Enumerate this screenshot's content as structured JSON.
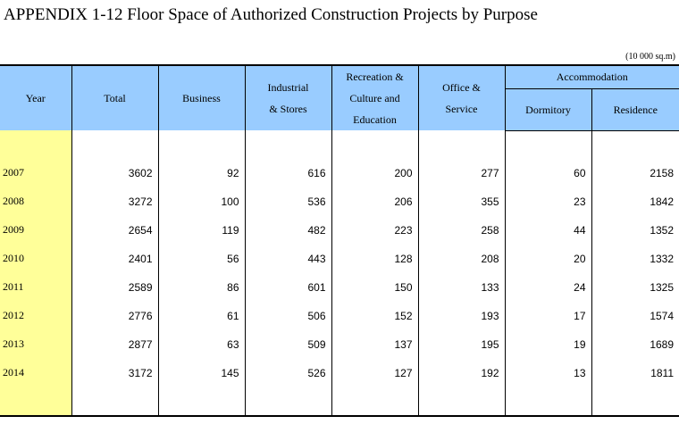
{
  "title": "APPENDIX 1-12  Floor Space of Authorized Construction Projects by Purpose",
  "unit": "(10 000 sq.m)",
  "headers": {
    "year": "Year",
    "total": "Total",
    "business": "Business",
    "industrial_1": "Industrial",
    "industrial_2": "& Stores",
    "recreation_1": "Recreation &",
    "recreation_2": "Culture and",
    "recreation_3": "Education",
    "office_1": "Office &",
    "office_2": "Service",
    "accommodation": "Accommodation",
    "dormitory": "Dormitory",
    "residence": "Residence"
  },
  "rows": [
    {
      "year": "2007",
      "total": "3602",
      "business": "92",
      "industrial": "616",
      "recreation": "200",
      "office": "277",
      "dormitory": "60",
      "residence": "2158"
    },
    {
      "year": "2008",
      "total": "3272",
      "business": "100",
      "industrial": "536",
      "recreation": "206",
      "office": "355",
      "dormitory": "23",
      "residence": "1842"
    },
    {
      "year": "2009",
      "total": "2654",
      "business": "119",
      "industrial": "482",
      "recreation": "223",
      "office": "258",
      "dormitory": "44",
      "residence": "1352"
    },
    {
      "year": "2010",
      "total": "2401",
      "business": "56",
      "industrial": "443",
      "recreation": "128",
      "office": "208",
      "dormitory": "20",
      "residence": "1332"
    },
    {
      "year": "2011",
      "total": "2589",
      "business": "86",
      "industrial": "601",
      "recreation": "150",
      "office": "133",
      "dormitory": "24",
      "residence": "1325"
    },
    {
      "year": "2012",
      "total": "2776",
      "business": "61",
      "industrial": "506",
      "recreation": "152",
      "office": "193",
      "dormitory": "17",
      "residence": "1574"
    },
    {
      "year": "2013",
      "total": "2877",
      "business": "63",
      "industrial": "509",
      "recreation": "137",
      "office": "195",
      "dormitory": "19",
      "residence": "1689"
    },
    {
      "year": "2014",
      "total": "3172",
      "business": "145",
      "industrial": "526",
      "recreation": "127",
      "office": "192",
      "dormitory": "13",
      "residence": "1811"
    }
  ],
  "colors": {
    "header_bg": "#99ccff",
    "year_col_bg": "#ffff99"
  }
}
